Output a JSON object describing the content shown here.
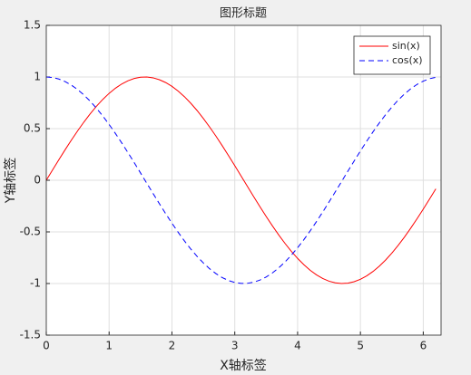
{
  "chart_data": {
    "type": "line",
    "title": "图形标题",
    "xlabel": "X轴标签",
    "ylabel": "Y轴标签",
    "x": [
      0,
      0.1,
      0.2,
      0.3,
      0.4,
      0.5,
      0.6,
      0.7,
      0.8,
      0.9,
      1,
      1.1,
      1.2,
      1.3,
      1.4,
      1.5,
      1.6,
      1.7,
      1.8,
      1.9,
      2,
      2.1,
      2.2,
      2.3,
      2.4,
      2.5,
      2.6,
      2.7,
      2.8,
      2.9,
      3,
      3.1,
      3.2,
      3.3,
      3.4,
      3.5,
      3.6,
      3.7,
      3.8,
      3.9,
      4,
      4.1,
      4.2,
      4.3,
      4.4,
      4.5,
      4.6,
      4.7,
      4.8,
      4.9,
      5,
      5.1,
      5.2,
      5.3,
      5.4,
      5.5,
      5.6,
      5.7,
      5.8,
      5.9,
      6,
      6.1,
      6.2
    ],
    "series": [
      {
        "name": "sin(x)",
        "color": "#ff0000",
        "style": "solid",
        "values": [
          0,
          0.0998,
          0.1987,
          0.2955,
          0.3894,
          0.4794,
          0.5646,
          0.6442,
          0.7174,
          0.7833,
          0.8415,
          0.8912,
          0.932,
          0.9636,
          0.9854,
          0.9975,
          0.9996,
          0.9917,
          0.9738,
          0.9463,
          0.9093,
          0.8632,
          0.8085,
          0.7457,
          0.6755,
          0.5985,
          0.5155,
          0.4274,
          0.335,
          0.2392,
          0.1411,
          0.0416,
          -0.0584,
          -0.1577,
          -0.2555,
          -0.3508,
          -0.4425,
          -0.5298,
          -0.6119,
          -0.6878,
          -0.7568,
          -0.8183,
          -0.8716,
          -0.9162,
          -0.9516,
          -0.9775,
          -0.9937,
          -0.9999,
          -0.9962,
          -0.9825,
          -0.9589,
          -0.9258,
          -0.8835,
          -0.8323,
          -0.7728,
          -0.7055,
          -0.6313,
          -0.5507,
          -0.4646,
          -0.3739,
          -0.2794,
          -0.1822,
          -0.0831
        ]
      },
      {
        "name": "cos(x)",
        "color": "#0000ff",
        "style": "dashed",
        "values": [
          1,
          0.995,
          0.9801,
          0.9553,
          0.9211,
          0.8776,
          0.8253,
          0.7648,
          0.6967,
          0.6216,
          0.5403,
          0.4536,
          0.3624,
          0.2675,
          0.17,
          0.0707,
          -0.0292,
          -0.1288,
          -0.2272,
          -0.3233,
          -0.4161,
          -0.5048,
          -0.5885,
          -0.6663,
          -0.7374,
          -0.8011,
          -0.8569,
          -0.9041,
          -0.9422,
          -0.971,
          -0.99,
          -0.9991,
          -0.9983,
          -0.9875,
          -0.9668,
          -0.9365,
          -0.8968,
          -0.8481,
          -0.791,
          -0.7259,
          -0.6536,
          -0.5748,
          -0.4903,
          -0.4008,
          -0.3073,
          -0.2108,
          -0.1122,
          -0.0124,
          0.0875,
          0.1865,
          0.2837,
          0.378,
          0.4685,
          0.5544,
          0.6347,
          0.7087,
          0.7756,
          0.8347,
          0.8855,
          0.9275,
          0.9602,
          0.9833,
          0.9965
        ]
      }
    ],
    "xlim": [
      0,
      6.2832
    ],
    "xticks": [
      0,
      1,
      2,
      3,
      4,
      5,
      6
    ],
    "ylim": [
      -1.5,
      1.5
    ],
    "yticks": [
      -1.5,
      -1,
      -0.5,
      0,
      0.5,
      1,
      1.5
    ],
    "grid": true,
    "legend": "northeast"
  }
}
